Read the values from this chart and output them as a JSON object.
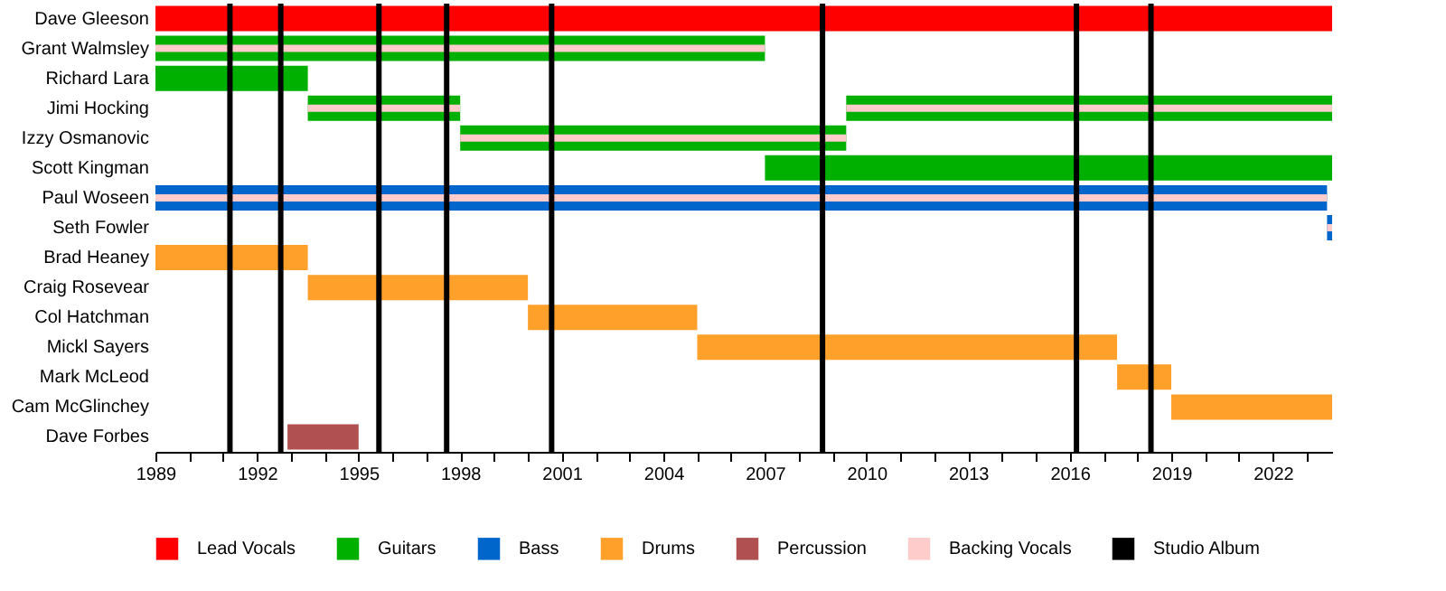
{
  "chart_data": {
    "type": "bar",
    "orientation": "horizontal",
    "legend": "bottom",
    "categories": [
      "Dave Gleeson",
      "Grant Walmsley",
      "Richard Lara",
      "Jimi Hocking",
      "Izzy Osmanovic",
      "Scott Kingman",
      "Paul Woseen",
      "Seth Fowler",
      "Brad Heaney",
      "Craig Rosevear",
      "Col Hatchman",
      "Mickl Sayers",
      "Mark McLeod",
      "Cam McGlinchey",
      "Dave Forbes"
    ],
    "xlim": [
      1989,
      2023.75
    ],
    "xticks": [
      1989,
      {
        "value": 1990,
        "label": null
      },
      {
        "value": 1991,
        "label": null
      },
      1992,
      {
        "value": 1993,
        "label": null
      },
      {
        "value": 1994,
        "label": null
      },
      1995,
      {
        "value": 1996,
        "label": null
      },
      {
        "value": 1997,
        "label": null
      },
      1998,
      {
        "value": 1999,
        "label": null
      },
      {
        "value": 2000,
        "label": null
      },
      2001,
      {
        "value": 2002,
        "label": null
      },
      {
        "value": 2003,
        "label": null
      },
      2004,
      {
        "value": 2005,
        "label": null
      },
      {
        "value": 2006,
        "label": null
      },
      2007,
      {
        "value": 2008,
        "label": null
      },
      {
        "value": 2009,
        "label": null
      },
      2010,
      {
        "value": 2011,
        "label": null
      },
      {
        "value": 2012,
        "label": null
      },
      2013,
      {
        "value": 2014,
        "label": null
      },
      {
        "value": 2015,
        "label": null
      },
      2016,
      {
        "value": 2017,
        "label": null
      },
      {
        "value": 2018,
        "label": null
      },
      2019,
      {
        "value": 2020,
        "label": null
      },
      {
        "value": 2021,
        "label": null
      },
      2022,
      {
        "value": 2023,
        "label": null
      }
    ],
    "series": [
      {
        "name": "Lead Vocals",
        "color": "#ff0000",
        "base": [
          1989,
          null,
          null,
          null,
          null,
          null,
          null,
          null,
          null,
          null,
          null,
          null,
          null,
          null,
          null
        ],
        "values": [
          34.75,
          null,
          null,
          null,
          null,
          null,
          null,
          null,
          null,
          null,
          null,
          null,
          null,
          null,
          null
        ]
      },
      {
        "name": "Guitars",
        "color": "#00b000",
        "base": [
          null,
          1989,
          1989,
          1993.5,
          1998,
          2007,
          null,
          null,
          null,
          null,
          null,
          null,
          null,
          null,
          null
        ],
        "values": [
          null,
          18,
          4.5,
          4.5,
          11.4,
          16.75,
          null,
          null,
          null,
          null,
          null,
          null,
          null,
          null,
          null
        ]
      },
      {
        "color": "#00b000",
        "base": [
          null,
          null,
          null,
          2009.4,
          null,
          null,
          null,
          null,
          null,
          null,
          null,
          null,
          null,
          null,
          null
        ],
        "values": [
          null,
          null,
          null,
          14.35,
          null,
          null,
          null,
          null,
          null,
          null,
          null,
          null,
          null,
          null,
          null
        ]
      },
      {
        "name": "Bass",
        "color": "#0066cc",
        "base": [
          null,
          null,
          null,
          null,
          null,
          null,
          1989,
          2023.6,
          null,
          null,
          null,
          null,
          null,
          null,
          null
        ],
        "values": [
          null,
          null,
          null,
          null,
          null,
          null,
          34.6,
          0.15,
          null,
          null,
          null,
          null,
          null,
          null,
          null
        ]
      },
      {
        "name": "Drums",
        "color": "#ffa02a",
        "base": [
          null,
          null,
          null,
          null,
          null,
          null,
          null,
          null,
          1989,
          1993.5,
          2000,
          2005,
          2017.4,
          2019,
          null
        ],
        "values": [
          null,
          null,
          null,
          null,
          null,
          null,
          null,
          null,
          4.5,
          6.5,
          5,
          12.4,
          1.6,
          4.75,
          null
        ]
      },
      {
        "name": "Percussion",
        "color": "#b05050",
        "base": [
          null,
          null,
          null,
          null,
          null,
          null,
          null,
          null,
          null,
          null,
          null,
          null,
          null,
          null,
          1992.9
        ],
        "values": [
          null,
          null,
          null,
          null,
          null,
          null,
          null,
          null,
          null,
          null,
          null,
          null,
          null,
          null,
          2.1
        ]
      },
      {
        "name": "Backing Vocals",
        "color": "#ffcccc",
        "base": [
          null,
          1989,
          null,
          1993.5,
          1998,
          null,
          1989,
          2023.6,
          null,
          null,
          null,
          null,
          null,
          null,
          null
        ],
        "values": [
          null,
          18,
          null,
          4.5,
          11.4,
          null,
          34.6,
          0.15,
          null,
          null,
          null,
          null,
          null,
          null,
          null
        ]
      },
      {
        "color": "#ffcccc",
        "base": [
          null,
          null,
          null,
          2009.4,
          null,
          null,
          null,
          null,
          null,
          null,
          null,
          null,
          null,
          null,
          null
        ],
        "values": [
          null,
          null,
          null,
          14.35,
          null,
          null,
          null,
          null,
          null,
          null,
          null,
          null,
          null,
          null,
          null
        ]
      }
    ],
    "ref_lines": [
      {
        "axis": "x",
        "value": 1991.2,
        "label": "Studio Album",
        "color": "#000000"
      },
      {
        "axis": "x",
        "value": 1992.7,
        "color": "#000000"
      },
      {
        "axis": "x",
        "value": 1995.6,
        "color": "#000000"
      },
      {
        "axis": "x",
        "value": 1997.6,
        "color": "#000000"
      },
      {
        "axis": "x",
        "value": 2000.7,
        "color": "#000000"
      },
      {
        "axis": "x",
        "value": 2008.7,
        "color": "#000000"
      },
      {
        "axis": "x",
        "value": 2016.2,
        "color": "#000000"
      },
      {
        "axis": "x",
        "value": 2018.4,
        "color": "#000000"
      }
    ]
  }
}
